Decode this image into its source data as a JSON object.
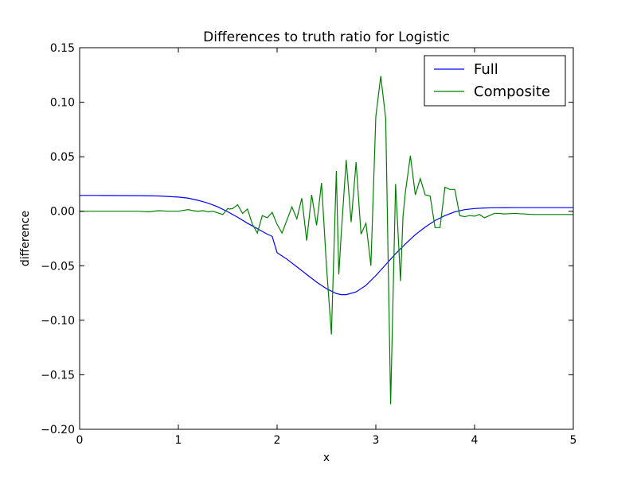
{
  "chart_data": {
    "type": "line",
    "title": "Differences to truth ratio for Logistic",
    "xlabel": "x",
    "ylabel": "difference",
    "xlim": [
      0,
      5
    ],
    "ylim": [
      -0.2,
      0.15
    ],
    "xticks": [
      0,
      1,
      2,
      3,
      4,
      5
    ],
    "xtick_labels": [
      "0",
      "1",
      "2",
      "3",
      "4",
      "5"
    ],
    "yticks": [
      -0.2,
      -0.15,
      -0.1,
      -0.05,
      0.0,
      0.05,
      0.1,
      0.15
    ],
    "ytick_labels": [
      "−0.20",
      "−0.15",
      "−0.10",
      "−0.05",
      "0.00",
      "0.05",
      "0.10",
      "0.15"
    ],
    "grid": false,
    "legend_position": "top-right",
    "series": [
      {
        "name": "Full",
        "color": "#0000ff",
        "x": [
          0,
          0.2,
          0.4,
          0.6,
          0.8,
          1.0,
          1.1,
          1.2,
          1.3,
          1.4,
          1.5,
          1.6,
          1.7,
          1.8,
          1.9,
          1.95,
          2.0,
          2.1,
          2.2,
          2.3,
          2.4,
          2.5,
          2.6,
          2.65,
          2.7,
          2.8,
          2.9,
          3.0,
          3.1,
          3.2,
          3.3,
          3.4,
          3.5,
          3.6,
          3.7,
          3.8,
          3.9,
          4.0,
          4.1,
          4.2,
          4.4,
          4.6,
          4.8,
          5.0
        ],
        "values": [
          0.0145,
          0.0145,
          0.0144,
          0.0143,
          0.014,
          0.013,
          0.012,
          0.01,
          0.0075,
          0.004,
          -0.0005,
          -0.0055,
          -0.011,
          -0.016,
          -0.021,
          -0.023,
          -0.038,
          -0.044,
          -0.051,
          -0.058,
          -0.065,
          -0.071,
          -0.0755,
          -0.0765,
          -0.0765,
          -0.074,
          -0.068,
          -0.059,
          -0.049,
          -0.039,
          -0.03,
          -0.0215,
          -0.0145,
          -0.0085,
          -0.004,
          -0.0005,
          0.0015,
          0.0025,
          0.003,
          0.0032,
          0.0033,
          0.0033,
          0.0033,
          0.0033
        ]
      },
      {
        "name": "Composite",
        "color": "#008000",
        "x": [
          0,
          0.2,
          0.4,
          0.6,
          0.7,
          0.8,
          0.9,
          1.0,
          1.1,
          1.15,
          1.2,
          1.25,
          1.3,
          1.35,
          1.4,
          1.45,
          1.5,
          1.52,
          1.55,
          1.6,
          1.65,
          1.7,
          1.75,
          1.8,
          1.85,
          1.9,
          1.95,
          2.0,
          2.05,
          2.1,
          2.15,
          2.2,
          2.25,
          2.3,
          2.35,
          2.4,
          2.45,
          2.5,
          2.55,
          2.6,
          2.625,
          2.65,
          2.7,
          2.75,
          2.8,
          2.85,
          2.9,
          2.95,
          3.0,
          3.05,
          3.1,
          3.15,
          3.2,
          3.25,
          3.275,
          3.3,
          3.35,
          3.4,
          3.45,
          3.5,
          3.55,
          3.6,
          3.65,
          3.7,
          3.75,
          3.8,
          3.85,
          3.9,
          3.95,
          4.0,
          4.05,
          4.1,
          4.2,
          4.25,
          4.3,
          4.4,
          4.6,
          4.8,
          5.0
        ],
        "values": [
          0.0,
          0.0,
          0.0,
          0.0,
          -0.0005,
          0.0005,
          0.0,
          0.0,
          0.0015,
          0.0005,
          0.0,
          0.0005,
          -0.0005,
          0.0,
          -0.0015,
          -0.003,
          0.0025,
          0.002,
          0.0025,
          0.006,
          -0.002,
          0.002,
          -0.012,
          -0.02,
          -0.004,
          -0.006,
          -0.001,
          -0.012,
          -0.02,
          -0.008,
          0.004,
          -0.007,
          0.012,
          -0.027,
          0.015,
          -0.013,
          0.026,
          -0.05,
          -0.113,
          0.037,
          -0.058,
          -0.02,
          0.047,
          -0.01,
          0.045,
          -0.021,
          -0.011,
          -0.05,
          0.087,
          0.124,
          0.085,
          -0.177,
          0.025,
          -0.064,
          -0.005,
          0.018,
          0.051,
          0.015,
          0.03,
          0.015,
          0.014,
          -0.015,
          -0.015,
          0.022,
          0.02,
          0.02,
          -0.004,
          -0.005,
          -0.004,
          -0.0045,
          -0.003,
          -0.006,
          -0.002,
          -0.002,
          -0.0025,
          -0.002,
          -0.003,
          -0.003,
          -0.003
        ]
      }
    ]
  }
}
